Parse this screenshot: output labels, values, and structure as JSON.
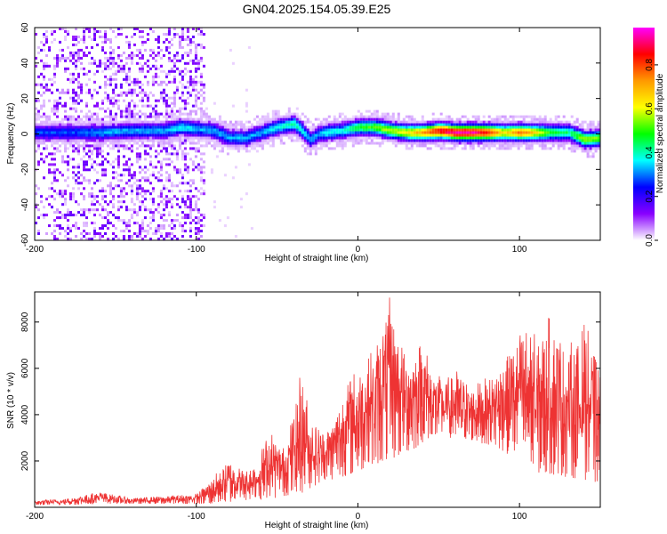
{
  "title": "GN04.2025.154.05.39.E25",
  "chart_data": [
    {
      "type": "heatmap",
      "xlabel": "Height of straight line (km)",
      "ylabel": "Frequency (Hz)",
      "xlim": [
        -200,
        150
      ],
      "ylim": [
        -60,
        60
      ],
      "x_ticks": [
        -200,
        -100,
        0,
        100
      ],
      "y_ticks": [
        60,
        40,
        20,
        0,
        -20,
        -40,
        -60
      ],
      "colorbar": {
        "label": "Normalized spectral amplitude",
        "range": [
          0,
          0.97
        ],
        "ticks": [
          "0.0",
          "0.2",
          "0.4",
          "0.6",
          "0.8"
        ],
        "colors": [
          "#ff00ff",
          "#ff0000",
          "#ff9900",
          "#ffff00",
          "#00ff00",
          "#00ffff",
          "#0000ff",
          "#8800ff",
          "#ffffff"
        ]
      },
      "ridge": {
        "x": [
          -175,
          -160,
          -140,
          -120,
          -110,
          -100,
          -90,
          -80,
          -70,
          -60,
          -50,
          -40,
          -35,
          -30,
          -25,
          -20,
          -10,
          0,
          10,
          20,
          30,
          40,
          50,
          60,
          70,
          80,
          90,
          100,
          110,
          120,
          130,
          140,
          150
        ],
        "y": [
          0,
          0,
          1,
          1,
          3,
          2,
          1,
          -3,
          -3,
          0,
          3,
          5,
          1,
          -4,
          -1,
          0,
          1,
          3,
          3,
          1,
          0,
          0,
          1,
          0,
          0,
          0,
          0,
          0,
          0,
          0,
          0,
          -4,
          -3
        ],
        "peak_amplitude": [
          0.25,
          0.3,
          0.3,
          0.3,
          0.35,
          0.3,
          0.3,
          0.3,
          0.3,
          0.3,
          0.35,
          0.4,
          0.35,
          0.3,
          0.3,
          0.35,
          0.35,
          0.45,
          0.5,
          0.55,
          0.6,
          0.7,
          0.85,
          0.9,
          0.9,
          0.8,
          0.6,
          0.75,
          0.6,
          0.45,
          0.4,
          0.55,
          0.5
        ]
      }
    },
    {
      "type": "line",
      "xlabel": "Height of straight line (km)",
      "ylabel": "SNR (10 * v/v)",
      "xlim": [
        -200,
        150
      ],
      "ylim": [
        0,
        9300
      ],
      "x_ticks": [
        -200,
        -100,
        0,
        100
      ],
      "y_ticks": [
        2000,
        4000,
        6000,
        8000
      ],
      "color": "#ee3333",
      "envelope": {
        "x": [
          -200,
          -180,
          -160,
          -140,
          -120,
          -100,
          -90,
          -85,
          -80,
          -75,
          -70,
          -65,
          -60,
          -55,
          -50,
          -45,
          -40,
          -35,
          -30,
          -25,
          -20,
          -15,
          -10,
          -5,
          0,
          5,
          10,
          15,
          20,
          25,
          30,
          35,
          40,
          45,
          50,
          55,
          60,
          70,
          80,
          90,
          100,
          105,
          110,
          120,
          130,
          140,
          150
        ],
        "low": [
          100,
          100,
          150,
          150,
          150,
          150,
          150,
          200,
          200,
          300,
          300,
          300,
          300,
          400,
          400,
          500,
          500,
          600,
          800,
          1000,
          1200,
          1200,
          1300,
          1400,
          1500,
          1700,
          1800,
          2000,
          2000,
          2200,
          2400,
          2500,
          2800,
          3000,
          3000,
          3000,
          3000,
          2900,
          2700,
          2400,
          2000,
          1800,
          1500,
          1400,
          1300,
          1200,
          1000
        ],
        "high": [
          300,
          400,
          700,
          400,
          500,
          600,
          1300,
          1700,
          2200,
          2000,
          1600,
          2000,
          2500,
          3500,
          3000,
          2800,
          4200,
          6200,
          4300,
          3600,
          3500,
          4000,
          5100,
          6000,
          6100,
          7100,
          6800,
          8300,
          9200,
          7800,
          6900,
          7100,
          7500,
          6300,
          5700,
          5600,
          6100,
          5300,
          5600,
          6700,
          7800,
          8500,
          7400,
          8500,
          7100,
          8000,
          6600
        ]
      }
    }
  ]
}
